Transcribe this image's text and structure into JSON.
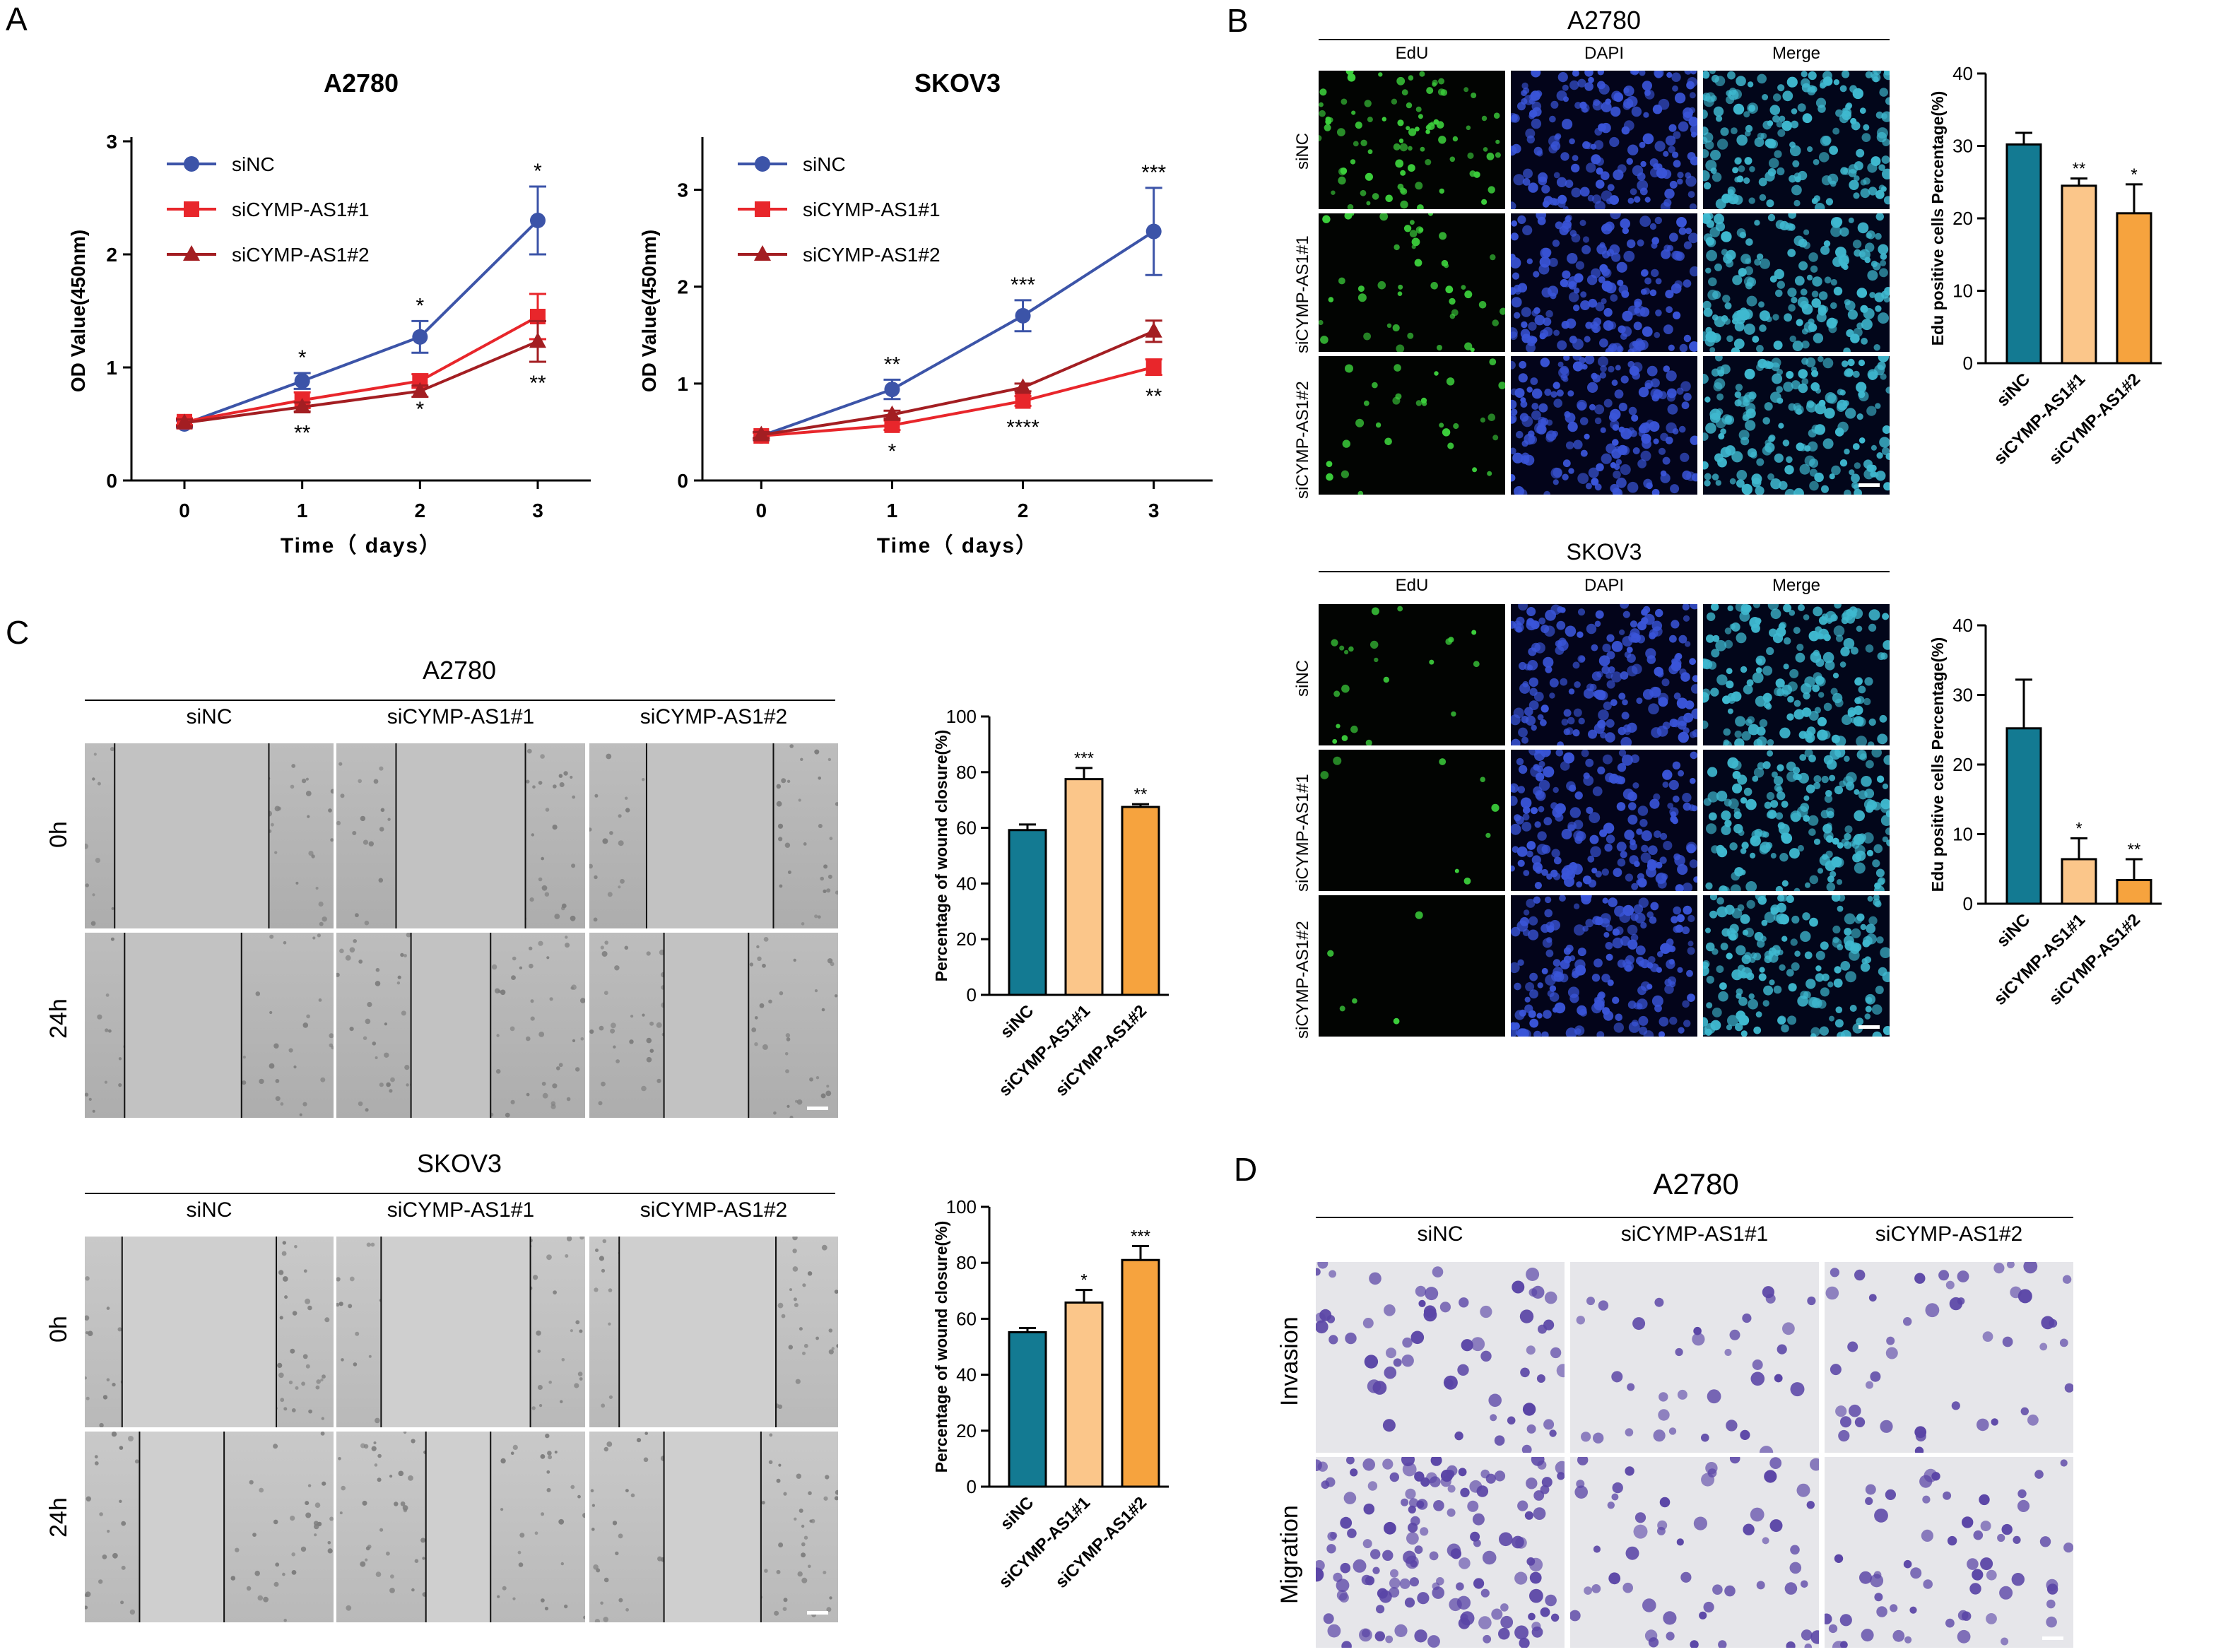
{
  "panels": {
    "A": "A",
    "B": "B",
    "C": "C",
    "D": "D"
  },
  "series_names": [
    "siNC",
    "siCYMP-AS1#1",
    "siCYMP-AS1#2"
  ],
  "colors": {
    "line_siNC": "#3c54a8",
    "line_si1": "#e8262b",
    "line_si2": "#a31e22",
    "bar_siNC": "#137a92",
    "bar_si1": "#fbc68a",
    "bar_si2": "#f6a33e",
    "green_dots": "#3ccf3c",
    "blue_dots": "#3a55d9",
    "merge_dots": "#3fb9d0",
    "crystal_violet": "#5a45a6"
  },
  "panelB": {
    "A2780": {
      "title": "A2780",
      "cols": [
        "EdU",
        "DAPI",
        "Merge"
      ],
      "rows": [
        "siNC",
        "siCYMP-AS1#1",
        "siCYMP-AS1#2"
      ]
    },
    "SKOV3": {
      "title": "SKOV3",
      "cols": [
        "EdU",
        "DAPI",
        "Merge"
      ],
      "rows": [
        "siNC",
        "siCYMP-AS1#1",
        "siCYMP-AS1#2"
      ]
    }
  },
  "panelC": {
    "A2780": {
      "title": "A2780",
      "cols": [
        "siNC",
        "siCYMP-AS1#1",
        "siCYMP-AS1#2"
      ],
      "rows": [
        "0h",
        "24h"
      ]
    },
    "SKOV3": {
      "title": "SKOV3",
      "cols": [
        "siNC",
        "siCYMP-AS1#1",
        "siCYMP-AS1#2"
      ],
      "rows": [
        "0h",
        "24h"
      ]
    }
  },
  "panelD": {
    "title": "A2780",
    "cols": [
      "siNC",
      "siCYMP-AS1#1",
      "siCYMP-AS1#2"
    ],
    "rows": [
      "Invasion",
      "Migration"
    ]
  },
  "chart_data": [
    {
      "id": "A-A2780",
      "type": "line",
      "title": "A2780",
      "xlabel": "Time（ days）",
      "ylabel": "OD Value(450nm)",
      "x": [
        0,
        1,
        2,
        3
      ],
      "xlim": [
        0,
        3
      ],
      "ylim": [
        0,
        3
      ],
      "yticks": [
        0,
        1,
        2,
        3
      ],
      "legend_position": "top-left",
      "series": [
        {
          "name": "siNC",
          "values": [
            0.5,
            0.88,
            1.27,
            2.3
          ],
          "errors": [
            0.03,
            0.07,
            0.14,
            0.3
          ],
          "marker": "circle",
          "stars": [
            "",
            "*",
            "*",
            "*"
          ],
          "star_pos": [
            "",
            "above",
            "above",
            "above"
          ]
        },
        {
          "name": "siCYMP-AS1#1",
          "values": [
            0.52,
            0.71,
            0.88,
            1.45
          ],
          "errors": [
            0.03,
            0.07,
            0.06,
            0.2
          ],
          "marker": "square",
          "stars": [
            "",
            "",
            "*",
            ""
          ],
          "star_pos": [
            "",
            "",
            "below",
            ""
          ]
        },
        {
          "name": "siCYMP-AS1#2",
          "values": [
            0.51,
            0.65,
            0.79,
            1.23
          ],
          "errors": [
            0.03,
            0.04,
            0.05,
            0.18
          ],
          "marker": "triangle",
          "stars": [
            "",
            "**",
            "",
            "**"
          ],
          "star_pos": [
            "",
            "below",
            "",
            "below"
          ]
        }
      ]
    },
    {
      "id": "A-SKOV3",
      "type": "line",
      "title": "SKOV3",
      "xlabel": "Time（ days）",
      "ylabel": "OD Value(450nm)",
      "x": [
        0,
        1,
        2,
        3
      ],
      "xlim": [
        0,
        3
      ],
      "ylim": [
        0,
        3.5
      ],
      "yticks": [
        0,
        1,
        2,
        3
      ],
      "legend_position": "top-left",
      "series": [
        {
          "name": "siNC",
          "values": [
            0.46,
            0.94,
            1.7,
            2.57
          ],
          "errors": [
            0.04,
            0.1,
            0.16,
            0.45
          ],
          "marker": "circle",
          "stars": [
            "",
            "**",
            "***",
            "***"
          ],
          "star_pos": [
            "",
            "above",
            "above",
            "above"
          ]
        },
        {
          "name": "siCYMP-AS1#1",
          "values": [
            0.46,
            0.57,
            0.82,
            1.17
          ],
          "errors": [
            0.03,
            0.05,
            0.05,
            0.08
          ],
          "marker": "square",
          "stars": [
            "",
            "*",
            "****",
            "**"
          ],
          "star_pos": [
            "",
            "below",
            "below",
            "below"
          ]
        },
        {
          "name": "siCYMP-AS1#2",
          "values": [
            0.47,
            0.68,
            0.96,
            1.54
          ],
          "errors": [
            0.03,
            0.04,
            0.04,
            0.11
          ],
          "marker": "triangle",
          "stars": [
            "",
            "",
            "",
            ""
          ],
          "star_pos": [
            "",
            "",
            "",
            ""
          ]
        }
      ]
    },
    {
      "id": "B-A2780",
      "type": "bar",
      "ylabel": "Edu positive cells Percentage(%)",
      "categories": [
        "siNC",
        "siCYMP-AS1#1",
        "siCYMP-AS1#2"
      ],
      "values": [
        30.2,
        24.5,
        20.7
      ],
      "errors": [
        1.6,
        1.0,
        4.0
      ],
      "stars": [
        "",
        "**",
        "*"
      ],
      "ylim": [
        0,
        40
      ],
      "yticks": [
        0,
        10,
        20,
        30,
        40
      ]
    },
    {
      "id": "B-SKOV3",
      "type": "bar",
      "ylabel": "Edu positive cells Percentage(%)",
      "categories": [
        "siNC",
        "siCYMP-AS1#1",
        "siCYMP-AS1#2"
      ],
      "values": [
        25.2,
        6.4,
        3.4
      ],
      "errors": [
        7.0,
        3.0,
        3.0
      ],
      "stars": [
        "",
        "*",
        "**"
      ],
      "ylim": [
        0,
        40
      ],
      "yticks": [
        0,
        10,
        20,
        30,
        40
      ]
    },
    {
      "id": "C-A2780",
      "type": "bar",
      "ylabel": "Percentage of wound closure(%)",
      "categories": [
        "siNC",
        "siCYMP-AS1#1",
        "siCYMP-AS1#2"
      ],
      "values": [
        59.2,
        77.5,
        67.5
      ],
      "errors": [
        2.0,
        4.0,
        1.0
      ],
      "stars": [
        "",
        "***",
        "**"
      ],
      "ylim": [
        0,
        100
      ],
      "yticks": [
        0,
        20,
        40,
        60,
        80,
        100
      ]
    },
    {
      "id": "C-SKOV3",
      "type": "bar",
      "ylabel": "Percentage of wound closure(%)",
      "categories": [
        "siNC",
        "siCYMP-AS1#1",
        "siCYMP-AS1#2"
      ],
      "values": [
        55.2,
        65.8,
        81.0
      ],
      "errors": [
        1.5,
        4.5,
        5.0
      ],
      "stars": [
        "",
        "*",
        "***"
      ],
      "ylim": [
        0,
        100
      ],
      "yticks": [
        0,
        20,
        40,
        60,
        80,
        100
      ]
    }
  ]
}
